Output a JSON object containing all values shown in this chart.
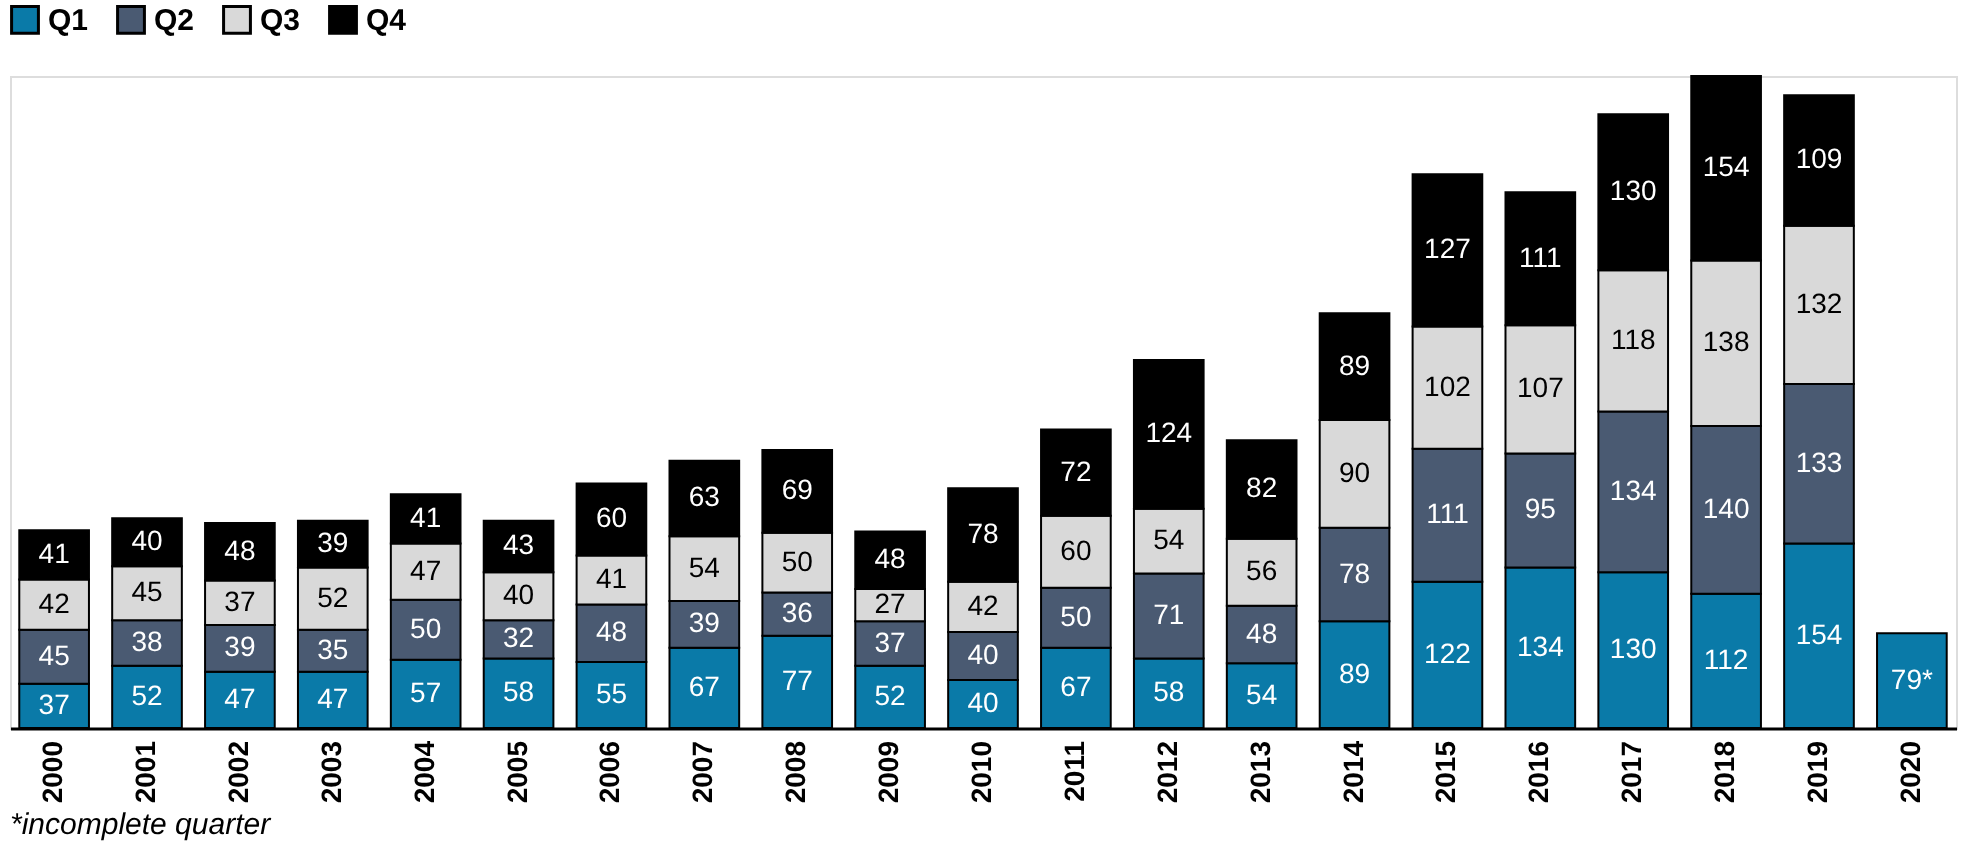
{
  "chart_data": {
    "type": "bar",
    "stacked": true,
    "legend": "top",
    "categories": [
      "2000",
      "2001",
      "2002",
      "2003",
      "2004",
      "2005",
      "2006",
      "2007",
      "2008",
      "2009",
      "2010",
      "2011",
      "2012",
      "2013",
      "2014",
      "2015",
      "2016",
      "2017",
      "2018",
      "2019",
      "2020"
    ],
    "series": [
      {
        "name": "Q1",
        "color": "#0a7aa8",
        "values": [
          37,
          52,
          47,
          47,
          57,
          58,
          55,
          67,
          77,
          52,
          40,
          67,
          58,
          54,
          89,
          122,
          134,
          130,
          112,
          154,
          79
        ],
        "value_labels": [
          "37",
          "52",
          "47",
          "47",
          "57",
          "58",
          "55",
          "67",
          "77",
          "52",
          "40",
          "67",
          "58",
          "54",
          "89",
          "122",
          "134",
          "130",
          "112",
          "154",
          "79*"
        ]
      },
      {
        "name": "Q2",
        "color": "#4a5a72",
        "values": [
          45,
          38,
          39,
          35,
          50,
          32,
          48,
          39,
          36,
          37,
          40,
          50,
          71,
          48,
          78,
          111,
          95,
          134,
          140,
          133,
          null
        ],
        "value_labels": [
          "45",
          "38",
          "39",
          "35",
          "50",
          "32",
          "48",
          "39",
          "36",
          "37",
          "40",
          "50",
          "71",
          "48",
          "78",
          "111",
          "95",
          "134",
          "140",
          "133",
          null
        ]
      },
      {
        "name": "Q3",
        "color": "#d9d9d9",
        "values": [
          42,
          45,
          37,
          52,
          47,
          40,
          41,
          54,
          50,
          27,
          42,
          60,
          54,
          56,
          90,
          102,
          107,
          118,
          138,
          132,
          null
        ],
        "value_labels": [
          "42",
          "45",
          "37",
          "52",
          "47",
          "40",
          "41",
          "54",
          "50",
          "27",
          "42",
          "60",
          "54",
          "56",
          "90",
          "102",
          "107",
          "118",
          "138",
          "132",
          null
        ]
      },
      {
        "name": "Q4",
        "color": "#000000",
        "values": [
          41,
          40,
          48,
          39,
          41,
          43,
          60,
          63,
          69,
          48,
          78,
          72,
          124,
          82,
          89,
          127,
          111,
          130,
          154,
          109,
          null
        ],
        "value_labels": [
          "41",
          "40",
          "48",
          "39",
          "41",
          "43",
          "60",
          "63",
          "69",
          "48",
          "78",
          "72",
          "124",
          "82",
          "89",
          "127",
          "111",
          "130",
          "154",
          "109",
          null
        ]
      }
    ],
    "annotations": [
      "*incomplete quarter"
    ]
  }
}
